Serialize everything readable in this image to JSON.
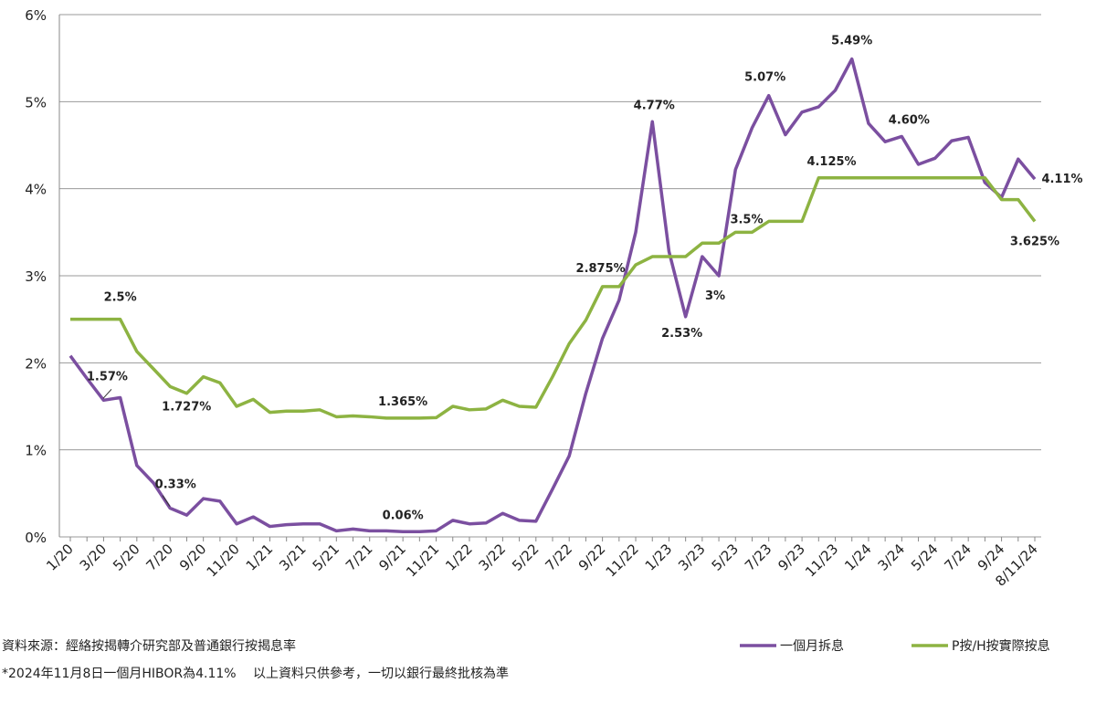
{
  "chart_data": {
    "type": "line",
    "categories": [
      "1/20",
      null,
      "3/20",
      null,
      "5/20",
      null,
      "7/20",
      null,
      "9/20",
      null,
      "11/20",
      null,
      "1/21",
      null,
      "3/21",
      null,
      "5/21",
      null,
      "7/21",
      null,
      "9/21",
      null,
      "11/21",
      null,
      "1/22",
      null,
      "3/22",
      null,
      "5/22",
      null,
      "7/22",
      null,
      "9/22",
      null,
      "11/22",
      null,
      "1/23",
      null,
      "3/23",
      null,
      "5/23",
      null,
      "7/23",
      null,
      "9/23",
      null,
      "11/23",
      null,
      "1/24",
      null,
      "3/24",
      null,
      "5/24",
      null,
      "7/24",
      null,
      "9/24",
      null,
      "8/11/24"
    ],
    "series": [
      {
        "name": "一個月拆息",
        "color": "#7b4fa0",
        "values": [
          2.08,
          1.82,
          1.57,
          1.6,
          0.82,
          0.62,
          0.33,
          0.25,
          0.44,
          0.41,
          0.15,
          0.23,
          0.12,
          0.14,
          0.15,
          0.15,
          0.07,
          0.09,
          0.07,
          0.07,
          0.06,
          0.06,
          0.07,
          0.19,
          0.15,
          0.16,
          0.27,
          0.19,
          0.18,
          0.55,
          0.93,
          1.65,
          2.28,
          2.72,
          3.5,
          4.77,
          3.28,
          2.53,
          3.22,
          3,
          4.22,
          4.7,
          5.07,
          4.62,
          4.88,
          4.94,
          5.13,
          5.49,
          4.75,
          4.54,
          4.6,
          4.28,
          4.35,
          4.55,
          4.59,
          4.07,
          3.9,
          4.34,
          4.11
        ],
        "value_labels": [
          null,
          null,
          "1.57%",
          null,
          null,
          null,
          "0.33%",
          null,
          null,
          null,
          null,
          null,
          null,
          null,
          null,
          null,
          null,
          null,
          null,
          null,
          "0.06%",
          null,
          null,
          null,
          null,
          null,
          null,
          null,
          null,
          null,
          null,
          null,
          null,
          null,
          null,
          "4.77%",
          null,
          "2.53%",
          null,
          "3%",
          null,
          null,
          "5.07%",
          null,
          null,
          null,
          null,
          "5.49%",
          null,
          null,
          "4.60%",
          null,
          null,
          null,
          null,
          null,
          null,
          null,
          "4.11%"
        ]
      },
      {
        "name": "P按/H按實際按息",
        "color": "#8db342",
        "values": [
          2.5,
          2.5,
          2.5,
          2.5,
          2.13,
          1.93,
          1.727,
          1.65,
          1.84,
          1.77,
          1.5,
          1.58,
          1.43,
          1.445,
          1.445,
          1.46,
          1.38,
          1.39,
          1.38,
          1.365,
          1.365,
          1.365,
          1.37,
          1.5,
          1.46,
          1.47,
          1.57,
          1.5,
          1.49,
          1.84,
          2.22,
          2.49,
          2.875,
          2.875,
          3.125,
          3.22,
          3.22,
          3.22,
          3.375,
          3.375,
          3.5,
          3.5,
          3.625,
          3.625,
          3.625,
          4.125,
          4.125,
          4.125,
          4.125,
          4.125,
          4.125,
          4.125,
          4.125,
          4.125,
          4.125,
          4.125,
          3.875,
          3.875,
          3.625
        ],
        "value_labels": [
          null,
          null,
          null,
          "2.5%",
          null,
          null,
          "1.727%",
          null,
          null,
          null,
          null,
          null,
          null,
          null,
          null,
          null,
          null,
          null,
          null,
          null,
          "1.365%",
          null,
          null,
          null,
          null,
          null,
          null,
          null,
          null,
          null,
          null,
          null,
          "2.875%",
          null,
          null,
          null,
          null,
          null,
          null,
          null,
          null,
          "3.5%",
          null,
          null,
          null,
          null,
          "4.125%",
          null,
          null,
          null,
          null,
          null,
          null,
          null,
          null,
          null,
          null,
          null,
          "3.625%"
        ]
      }
    ],
    "ylim": [
      0,
      6
    ],
    "yticks": [
      {
        "value": 0,
        "label": "0%"
      },
      {
        "value": 1,
        "label": "1%"
      },
      {
        "value": 2,
        "label": "2%"
      },
      {
        "value": 3,
        "label": "3%"
      },
      {
        "value": 4,
        "label": "4%"
      },
      {
        "value": 5,
        "label": "5%"
      },
      {
        "value": 6,
        "label": "6%"
      }
    ],
    "grid": true,
    "legend": "bottom-right",
    "source": "資料來源：經絡按揭轉介研究部及普通銀行按揭息率",
    "note": "*2024年11月8日一個月HIBOR為4.11%　 以上資料只供參考，一切以銀行最終批核為準"
  }
}
